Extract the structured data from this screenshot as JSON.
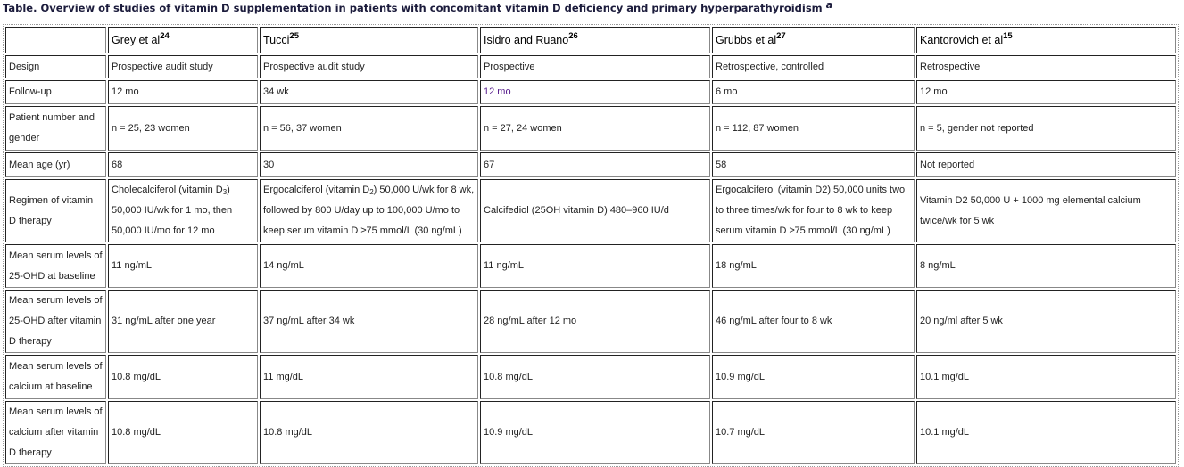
{
  "title": "Table. Overview of studies of vitamin D supplementation in patients with concomitant vitamin D deficiency and primary hyperparathyroidism",
  "title_footnote": "a",
  "columns": [
    {
      "name": "Grey et al",
      "ref": "24"
    },
    {
      "name": "Tucci",
      "ref": "25"
    },
    {
      "name": "Isidro and Ruano",
      "ref": "26"
    },
    {
      "name": "Grubbs et al",
      "ref": "27"
    },
    {
      "name": "Kantorovich et al",
      "ref": "15"
    }
  ],
  "rows": [
    {
      "label": "Design",
      "cells": [
        "Prospective audit study",
        "Prospective audit study",
        "Prospective",
        "Retrospective, controlled",
        "Retrospective"
      ]
    },
    {
      "label": "Follow-up",
      "cells": [
        "12 mo",
        "34 wk",
        "12 mo",
        "6 mo",
        "12 mo"
      ]
    },
    {
      "label": "Patient number and gender",
      "cells": [
        "n = 25, 23 women",
        "n = 56, 37 women",
        "n = 27, 24 women",
        "n = 112, 87 women",
        "n = 5, gender not reported"
      ]
    },
    {
      "label": "Mean age (yr)",
      "cells": [
        "68",
        "30",
        "67",
        "58",
        "Not reported"
      ]
    },
    {
      "label": "Regimen of vitamin D therapy",
      "cells": [
        "Cholecalciferol (vitamin D3) 50,000 IU/wk for 1 mo, then 50,000 IU/mo for 12 mo",
        "Ergocalciferol (vitamin D2) 50,000 U/wk for 8 wk, followed by 800 U/day up to 100,000 U/mo to keep serum vitamin D ≥75 mmol/L (30 ng/mL)",
        "Calcifediol (25OH vitamin D) 480–960 IU/d",
        "Ergocalciferol (vitamin D2) 50,000 units two to three times/wk for four to 8 wk to keep serum vitamin D ≥75 mmol/L (30 ng/mL)",
        "Vitamin D2 50,000 U + 1000 mg elemental calcium twice/wk for 5 wk"
      ]
    },
    {
      "label": "Mean serum levels of 25-OHD at baseline",
      "cells": [
        "11 ng/mL",
        "14 ng/mL",
        "11 ng/mL",
        "18 ng/mL",
        "8 ng/mL"
      ]
    },
    {
      "label": "Mean serum levels of 25-OHD after vitamin D therapy",
      "cells": [
        "31 ng/mL after one year",
        "37 ng/mL after 34 wk",
        "28 ng/mL after 12 mo",
        "46 ng/mL after four to 8 wk",
        "20 ng/ml after 5 wk"
      ]
    },
    {
      "label": "Mean serum levels of calcium at baseline",
      "cells": [
        "10.8 mg/dL",
        "11 mg/dL",
        "10.8 mg/dL",
        "10.9 mg/dL",
        "10.1 mg/dL"
      ]
    },
    {
      "label": "Mean serum levels of calcium after vitamin D therapy",
      "cells": [
        "10.8 mg/dL",
        "10.8 mg/dL",
        "10.9 mg/dL",
        "10.7 mg/dL",
        "10.1 mg/dL"
      ]
    }
  ]
}
